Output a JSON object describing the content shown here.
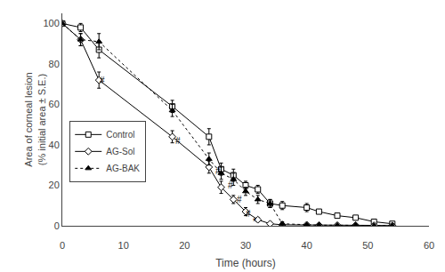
{
  "chart_data": {
    "type": "line",
    "title": "",
    "xlabel": "Time (hours)",
    "ylabel": "Area of corneal lesion\n(% initial area ± S.E.)",
    "xlim": [
      0,
      60
    ],
    "ylim": [
      0,
      105
    ],
    "xticks": [
      0,
      10,
      20,
      30,
      40,
      50,
      60
    ],
    "yticks": [
      0,
      20,
      40,
      60,
      80,
      100
    ],
    "grid": false,
    "legend": "lower left",
    "series": [
      {
        "name": "Control",
        "color": "#000000",
        "marker": "square-open",
        "line_style": "solid",
        "x": [
          0,
          3,
          6,
          18,
          24,
          26,
          28,
          30,
          32,
          34,
          36,
          40,
          42,
          45,
          48,
          51,
          54
        ],
        "values": [
          100,
          98,
          87,
          59,
          44,
          28,
          25,
          20,
          18,
          11,
          10,
          9,
          7,
          5,
          4,
          2,
          1
        ],
        "yerr": [
          0,
          2,
          4,
          3,
          4,
          3,
          3,
          2,
          2,
          2,
          2,
          2,
          1,
          1,
          1,
          0.5,
          0.3
        ]
      },
      {
        "name": "AG-Sol",
        "color": "#000000",
        "marker": "diamond-open",
        "line_style": "solid",
        "x": [
          0,
          3,
          6,
          18,
          24,
          26,
          28,
          30,
          32,
          34,
          36,
          40,
          42,
          45,
          48,
          51,
          54
        ],
        "values": [
          100,
          92,
          72,
          44,
          29,
          19,
          13,
          7,
          3,
          1,
          0.5,
          0.5,
          0.3,
          0.3,
          0.3,
          0.2,
          0.1
        ],
        "yerr": [
          0,
          3,
          4,
          3,
          3,
          3,
          2,
          2,
          1,
          0.5,
          0.3,
          0.3,
          0.2,
          0.2,
          0.2,
          0.1,
          0.1
        ]
      },
      {
        "name": "AG-BAK",
        "color": "#000000",
        "marker": "triangle-up",
        "line_style": "dotted",
        "x": [
          0,
          3,
          6,
          18,
          24,
          26,
          28,
          30,
          32,
          34,
          36,
          40,
          42,
          45,
          48,
          51,
          54
        ],
        "values": [
          100,
          92,
          91,
          57,
          33,
          26,
          23,
          17,
          13,
          11,
          1,
          0.5,
          0.3,
          0.3,
          0.3,
          0.1,
          0.1
        ],
        "yerr": [
          0,
          3,
          4,
          3,
          3,
          3,
          3,
          2,
          2,
          2,
          1,
          0.5,
          0.3,
          0.2,
          0.2,
          0.1,
          0.1
        ]
      }
    ],
    "annotations": [
      {
        "x": 6.5,
        "y": 72,
        "text": "#"
      },
      {
        "x": 19,
        "y": 42,
        "text": "#"
      },
      {
        "x": 25.5,
        "y": 27,
        "text": "#"
      },
      {
        "x": 27.5,
        "y": 20,
        "text": "#"
      },
      {
        "x": 29,
        "y": 13,
        "text": "#"
      },
      {
        "x": 30.5,
        "y": 6,
        "text": "#"
      },
      {
        "x": 31.5,
        "y": 2,
        "text": "*"
      },
      {
        "x": 33,
        "y": -1,
        "text": "#"
      },
      {
        "x": 41,
        "y": -2,
        "text": "*"
      },
      {
        "x": 44,
        "y": -2,
        "text": "#"
      },
      {
        "x": 48,
        "y": -2,
        "text": "*"
      }
    ]
  }
}
